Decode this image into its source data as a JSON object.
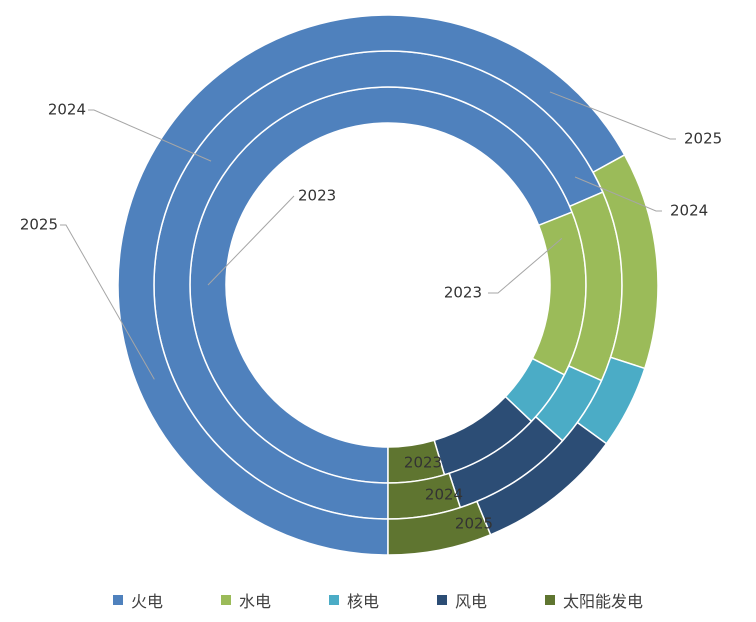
{
  "chart_data": {
    "type": "doughnut",
    "categories": [
      "火电",
      "水电",
      "核电",
      "风电",
      "太阳能发电"
    ],
    "colors": [
      "#4F81BD",
      "#9BBB59",
      "#4BACC6",
      "#2C4D75",
      "#5F7530"
    ],
    "series": [
      {
        "name": "2023",
        "values": [
          69.0,
          13.5,
          4.6,
          8.3,
          4.6
        ]
      },
      {
        "name": "2024",
        "values": [
          68.5,
          13.2,
          4.9,
          8.4,
          5.0
        ]
      },
      {
        "name": "2025",
        "values": [
          67.0,
          13.0,
          5.0,
          8.8,
          6.2
        ]
      }
    ],
    "legend_position": "bottom",
    "title": ""
  },
  "legend": {
    "items": [
      "火电",
      "水电",
      "核电",
      "风电",
      "太阳能发电"
    ]
  }
}
